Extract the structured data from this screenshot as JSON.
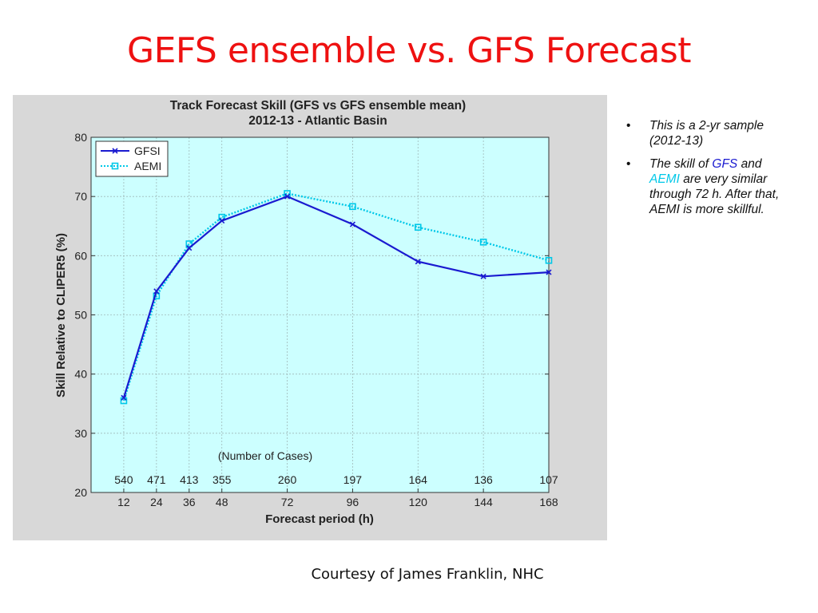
{
  "slide": {
    "title": "GEFS ensemble vs. GFS Forecast",
    "credit": "Courtesy of James Franklin, NHC"
  },
  "notes": {
    "bullet1": "This is a 2-yr sample (2012-13)",
    "bullet2": {
      "part1": "The skill of ",
      "gfs": "GFS",
      "part2": " and ",
      "aemi": "AEMI",
      "part3": " are very similar through 72 h. After that, AEMI is more skillful."
    },
    "colors": {
      "gfs": "#1a1ad0",
      "aemi": "#00c8e8"
    }
  },
  "chart_data": {
    "type": "line",
    "title": "Track Forecast Skill (GFS vs GFS ensemble mean)",
    "subtitle": "2012-13 - Atlantic Basin",
    "xlabel": "Forecast period (h)",
    "ylabel": "Skill Relative to CLIPER5 (%)",
    "x": [
      12,
      24,
      36,
      48,
      72,
      96,
      120,
      144,
      168
    ],
    "xlim": [
      0,
      168
    ],
    "ylim": [
      20,
      80
    ],
    "yticks": [
      20,
      30,
      40,
      50,
      60,
      70,
      80
    ],
    "grid": true,
    "legend_position": "top-left",
    "cases_label": "(Number of Cases)",
    "cases": [
      540,
      471,
      413,
      355,
      260,
      197,
      164,
      136,
      107
    ],
    "series": [
      {
        "name": "GFSI",
        "color": "#1a1ad0",
        "style": "solid",
        "marker": "x",
        "values": [
          36.0,
          54.0,
          61.3,
          65.9,
          70.0,
          65.3,
          59.0,
          56.5,
          57.2
        ]
      },
      {
        "name": "AEMI",
        "color": "#00c8e8",
        "style": "dotted",
        "marker": "square",
        "values": [
          35.5,
          53.2,
          62.0,
          66.5,
          70.5,
          68.3,
          64.8,
          62.3,
          59.2
        ]
      }
    ],
    "colors": {
      "plot_bg": "#ccffff",
      "panel_bg": "#d8d8d8"
    }
  }
}
